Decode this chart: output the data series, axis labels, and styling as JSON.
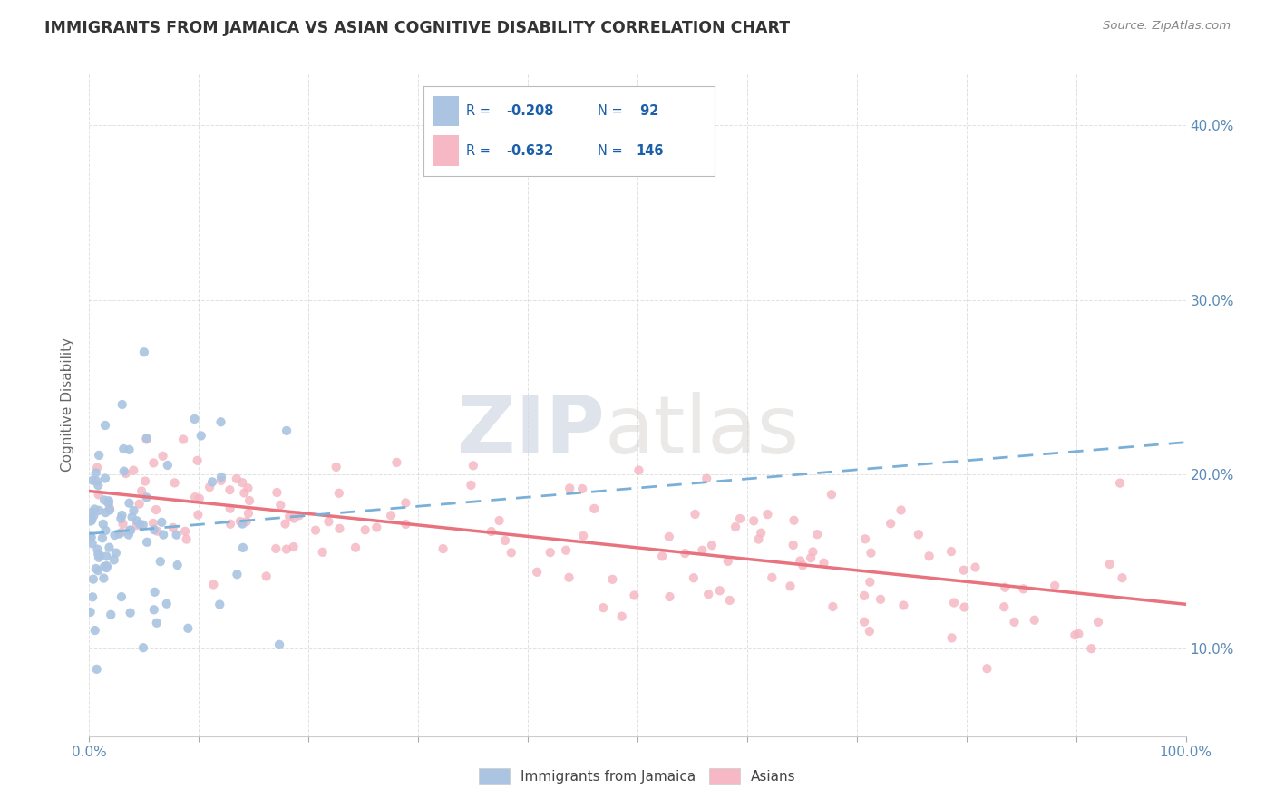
{
  "title": "IMMIGRANTS FROM JAMAICA VS ASIAN COGNITIVE DISABILITY CORRELATION CHART",
  "source": "Source: ZipAtlas.com",
  "ylabel": "Cognitive Disability",
  "xlim": [
    0,
    100
  ],
  "ylim": [
    5,
    43
  ],
  "x_tick_positions": [
    0,
    10,
    20,
    30,
    40,
    50,
    60,
    70,
    80,
    90,
    100
  ],
  "x_tick_labels": [
    "0.0%",
    "",
    "",
    "",
    "",
    "",
    "",
    "",
    "",
    "",
    "100.0%"
  ],
  "y_ticks": [
    10,
    20,
    30,
    40
  ],
  "y_tick_labels": [
    "10.0%",
    "20.0%",
    "30.0%",
    "40.0%"
  ],
  "series1_name": "Immigrants from Jamaica",
  "series1_R": "-0.208",
  "series1_N": "92",
  "series1_color": "#aac4e2",
  "series1_line_color": "#7ab0d8",
  "series2_name": "Asians",
  "series2_R": "-0.632",
  "series2_N": "146",
  "series2_color": "#f5b8c4",
  "series2_line_color": "#e8727e",
  "background_color": "#ffffff",
  "grid_color": "#cccccc",
  "title_color": "#333333",
  "legend_text_color": "#1a5fa8",
  "tick_color": "#5a8ab5"
}
